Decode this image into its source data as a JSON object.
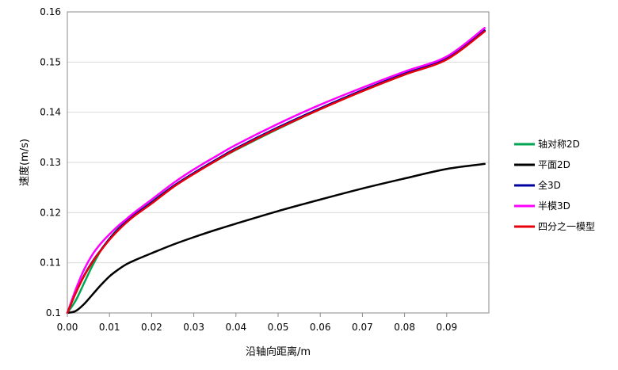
{
  "chart_data": {
    "type": "line",
    "title": "",
    "xlabel": "沿轴向距离/m",
    "ylabel": "速度(m/s)",
    "xlim": [
      0,
      0.1
    ],
    "ylim": [
      0.1,
      0.16
    ],
    "x_ticks": [
      0,
      0.01,
      0.02,
      0.03,
      0.04,
      0.05,
      0.06,
      0.07,
      0.08,
      0.09
    ],
    "x_tick_labels": [
      "0.00",
      "0.01",
      "0.02",
      "0.03",
      "0.04",
      "0.05",
      "0.06",
      "0.07",
      "0.08",
      "0.09"
    ],
    "y_ticks": [
      0.1,
      0.11,
      0.12,
      0.13,
      0.14,
      0.15,
      0.16
    ],
    "y_tick_labels": [
      "0.1",
      "0.11",
      "0.12",
      "0.13",
      "0.14",
      "0.15",
      "0.16"
    ],
    "grid": "horizontal",
    "legend_position": "right",
    "series": [
      {
        "name": "轴对称2D",
        "color": "#00a651",
        "x": [
          0,
          0.002,
          0.004,
          0.006,
          0.008,
          0.01,
          0.012,
          0.014,
          0.016,
          0.02,
          0.025,
          0.03,
          0.035,
          0.04,
          0.05,
          0.06,
          0.07,
          0.08,
          0.09,
          0.099
        ],
        "y": [
          0.1,
          0.1025,
          0.106,
          0.1095,
          0.1125,
          0.1148,
          0.1168,
          0.1184,
          0.1198,
          0.1222,
          0.1252,
          0.1278,
          0.1302,
          0.1325,
          0.1367,
          0.1406,
          0.1442,
          0.1475,
          0.1506,
          0.1562
        ]
      },
      {
        "name": "平面2D",
        "color": "#000000",
        "x": [
          0,
          0.002,
          0.004,
          0.006,
          0.008,
          0.01,
          0.012,
          0.014,
          0.016,
          0.02,
          0.025,
          0.03,
          0.035,
          0.04,
          0.05,
          0.06,
          0.07,
          0.08,
          0.09,
          0.099
        ],
        "y": [
          0.1,
          0.1004,
          0.1018,
          0.1037,
          0.1056,
          0.1073,
          0.1086,
          0.1097,
          0.1105,
          0.1119,
          0.1136,
          0.1151,
          0.1165,
          0.1178,
          0.1203,
          0.1226,
          0.1248,
          0.1268,
          0.1287,
          0.1297
        ]
      },
      {
        "name": "全3D",
        "color": "#0000a0",
        "x": [
          0,
          0.002,
          0.004,
          0.006,
          0.008,
          0.01,
          0.012,
          0.014,
          0.016,
          0.02,
          0.025,
          0.03,
          0.035,
          0.04,
          0.05,
          0.06,
          0.07,
          0.08,
          0.09,
          0.099
        ],
        "y": [
          0.1,
          0.104,
          0.1075,
          0.1103,
          0.1126,
          0.1148,
          0.1166,
          0.1182,
          0.1196,
          0.122,
          0.1252,
          0.1279,
          0.1304,
          0.1328,
          0.137,
          0.1408,
          0.1444,
          0.1477,
          0.1507,
          0.1563
        ]
      },
      {
        "name": "半模3D",
        "color": "#ff00ff",
        "x": [
          0,
          0.002,
          0.004,
          0.006,
          0.008,
          0.01,
          0.012,
          0.014,
          0.016,
          0.02,
          0.025,
          0.03,
          0.035,
          0.04,
          0.05,
          0.06,
          0.07,
          0.08,
          0.09,
          0.099
        ],
        "y": [
          0.1,
          0.1047,
          0.1087,
          0.1117,
          0.1139,
          0.1157,
          0.1173,
          0.1187,
          0.1201,
          0.1226,
          0.1258,
          0.1286,
          0.1311,
          0.1335,
          0.1377,
          0.1415,
          0.1449,
          0.1481,
          0.1511,
          0.1568
        ]
      },
      {
        "name": "四分之一模型",
        "color": "#e8000b",
        "x": [
          0,
          0.002,
          0.004,
          0.006,
          0.008,
          0.01,
          0.012,
          0.014,
          0.016,
          0.02,
          0.025,
          0.03,
          0.035,
          0.04,
          0.05,
          0.06,
          0.07,
          0.08,
          0.09,
          0.099
        ],
        "y": [
          0.1,
          0.104,
          0.1074,
          0.1102,
          0.1125,
          0.1146,
          0.1164,
          0.118,
          0.1194,
          0.1218,
          0.125,
          0.1277,
          0.1302,
          0.1326,
          0.1368,
          0.1406,
          0.1442,
          0.1475,
          0.1505,
          0.1561
        ]
      }
    ]
  }
}
